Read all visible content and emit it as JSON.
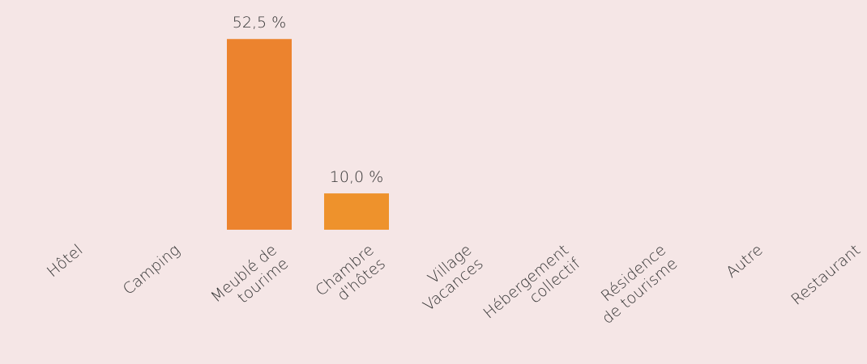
{
  "chart_data": {
    "type": "bar",
    "categories": [
      "Hôtel",
      "Camping",
      "Meublé de\ntourime",
      "Chambre\nd'hôtes",
      "Village\nVacances",
      "Hébergement\ncollectif",
      "Résidence\nde tourisme",
      "Autre",
      "Restaurant"
    ],
    "values": [
      null,
      null,
      52.5,
      10.0,
      null,
      null,
      null,
      null,
      null
    ],
    "value_labels": [
      null,
      null,
      "52,5 %",
      "10,0 %",
      null,
      null,
      null,
      null,
      null
    ],
    "colors": [
      null,
      null,
      "#ec832e",
      "#ee922c",
      null,
      null,
      null,
      null,
      null
    ],
    "ylim": [
      0,
      55
    ]
  }
}
